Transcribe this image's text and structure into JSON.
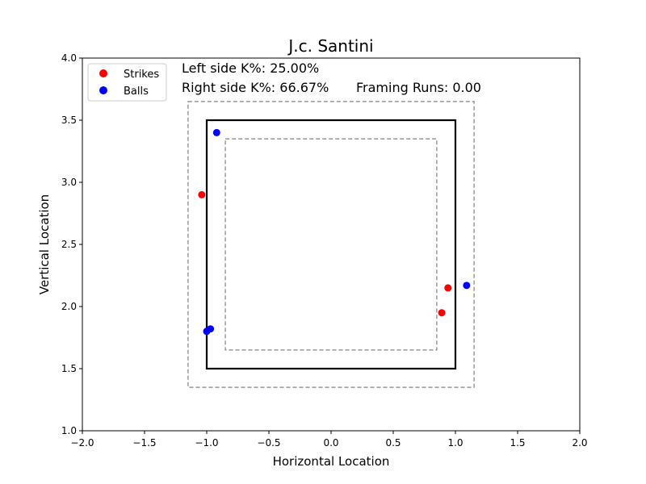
{
  "chart_data": {
    "type": "scatter",
    "title": "J.c. Santini",
    "xlabel": "Horizontal Location",
    "ylabel": "Vertical Location",
    "xlim": [
      -2.0,
      2.0
    ],
    "ylim": [
      1.0,
      4.0
    ],
    "x_ticks": [
      "−2.0",
      "−1.5",
      "−1.0",
      "−0.5",
      "0.0",
      "0.5",
      "1.0",
      "1.5",
      "2.0"
    ],
    "y_ticks": [
      "1.0",
      "1.5",
      "2.0",
      "2.5",
      "3.0",
      "3.5",
      "4.0"
    ],
    "x_tick_values": [
      -2.0,
      -1.5,
      -1.0,
      -0.5,
      0.0,
      0.5,
      1.0,
      1.5,
      2.0
    ],
    "y_tick_values": [
      1.0,
      1.5,
      2.0,
      2.5,
      3.0,
      3.5,
      4.0
    ],
    "grid": false,
    "legend_position": "top-left",
    "series": [
      {
        "name": "Strikes",
        "color": "#ff0000",
        "points": [
          {
            "x": -1.04,
            "y": 2.9
          },
          {
            "x": 0.94,
            "y": 2.15
          },
          {
            "x": 0.89,
            "y": 1.95
          }
        ]
      },
      {
        "name": "Balls",
        "color": "#0000ff",
        "points": [
          {
            "x": -0.92,
            "y": 3.4
          },
          {
            "x": 1.09,
            "y": 2.17
          },
          {
            "x": -1.0,
            "y": 1.8
          },
          {
            "x": -0.97,
            "y": 1.82
          }
        ]
      }
    ],
    "zones": {
      "strike_zone": {
        "x": [
          -1.0,
          1.0
        ],
        "y": [
          1.5,
          3.5
        ],
        "style": "solid",
        "color": "#000000"
      },
      "outer_zone": {
        "x": [
          -1.15,
          1.15
        ],
        "y": [
          1.35,
          3.65
        ],
        "style": "dashed",
        "color": "#808080"
      },
      "inner_zone": {
        "x": [
          -0.85,
          0.85
        ],
        "y": [
          1.65,
          3.35
        ],
        "style": "dashed",
        "color": "#808080"
      }
    },
    "annotations": {
      "left_k": "Left side K%: 25.00%",
      "right_k": "Right side K%: 66.67%",
      "framing": "Framing Runs: 0.00"
    }
  }
}
